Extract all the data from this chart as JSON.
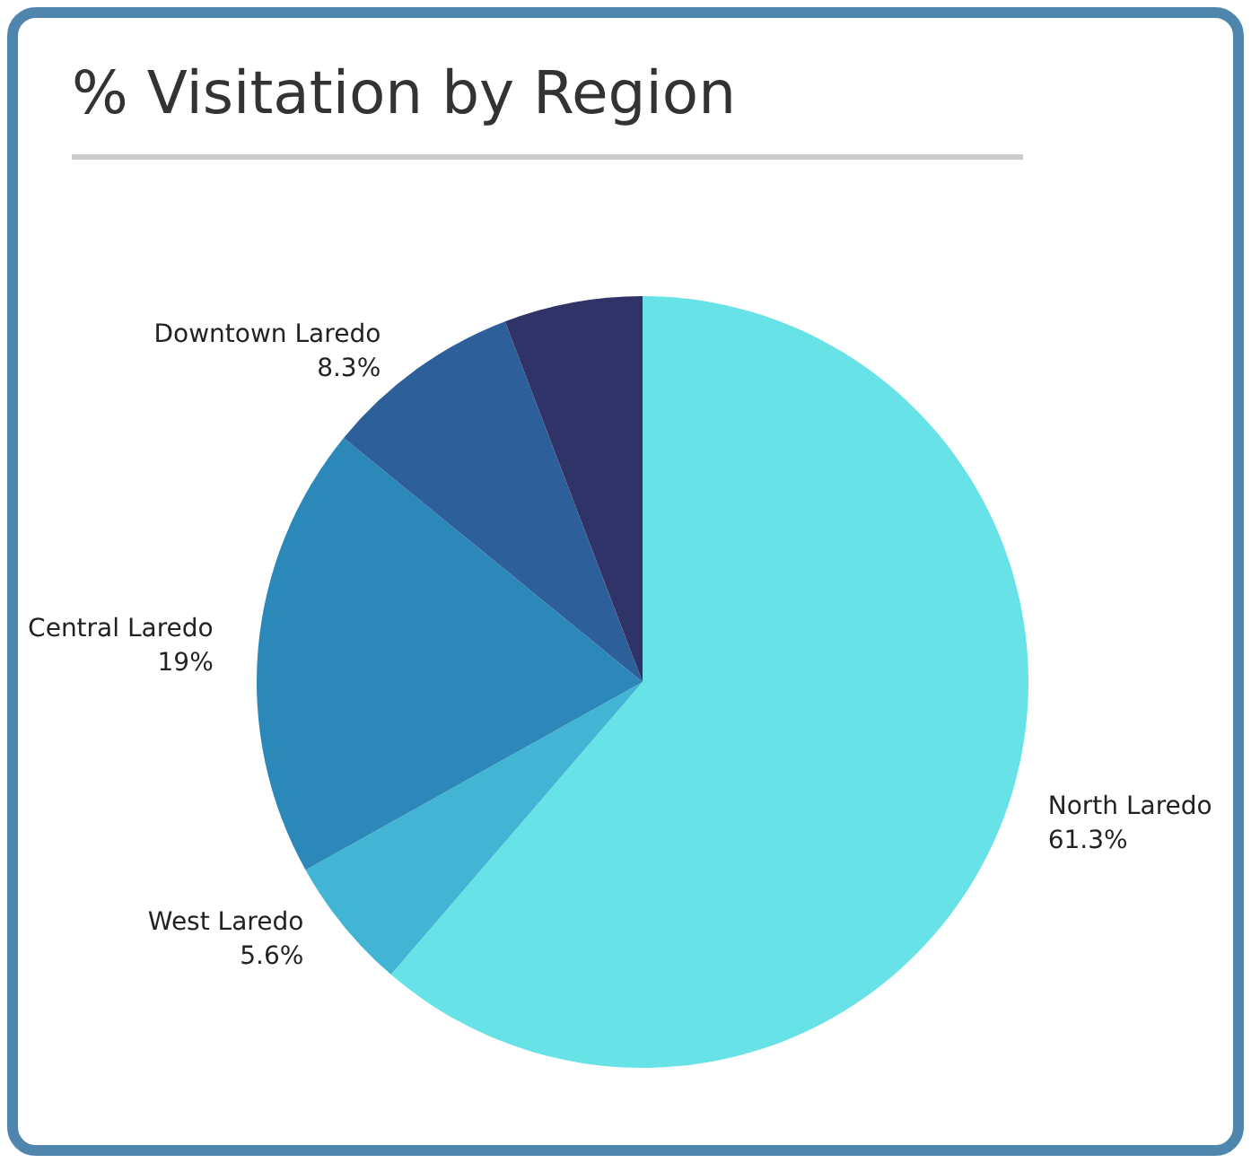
{
  "chart_data": {
    "type": "pie",
    "title": "% Visitation by Region",
    "categories": [
      "North Laredo",
      "West Laredo",
      "Central Laredo",
      "Downtown Laredo",
      null
    ],
    "values": [
      61.3,
      5.6,
      19,
      8.3,
      5.8
    ],
    "value_labels": [
      "61.3%",
      "5.6%",
      "19%",
      "8.3%",
      null
    ],
    "colors": [
      "#67e3e8",
      "#42b5d5",
      "#2b88b8",
      "#2d5f9a",
      "#2f3368"
    ],
    "legend": false
  }
}
